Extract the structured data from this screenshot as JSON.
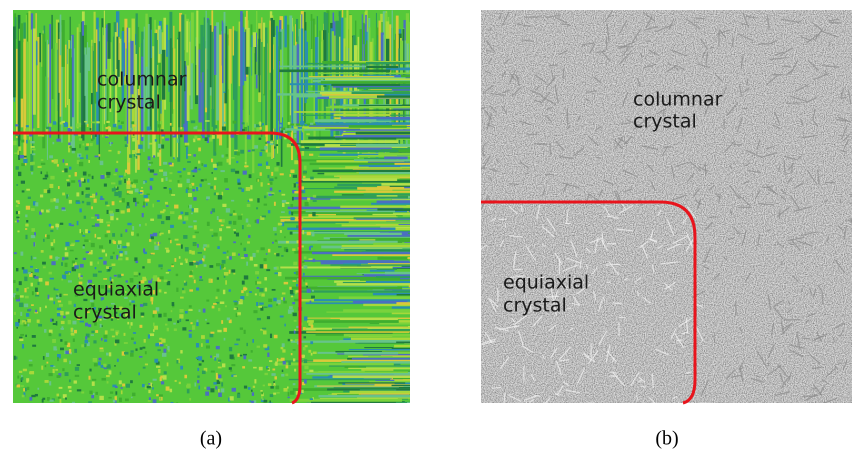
{
  "panels": [
    {
      "caption": "(a)",
      "labels": [
        {
          "lines": [
            "columnar",
            "crystal"
          ]
        },
        {
          "lines": [
            "equiaxial",
            "crystal"
          ]
        }
      ]
    },
    {
      "caption": "(b)",
      "labels": [
        {
          "lines": [
            "columnar",
            "crystal"
          ]
        },
        {
          "lines": [
            "equiaxial",
            "crystal"
          ]
        }
      ]
    }
  ]
}
